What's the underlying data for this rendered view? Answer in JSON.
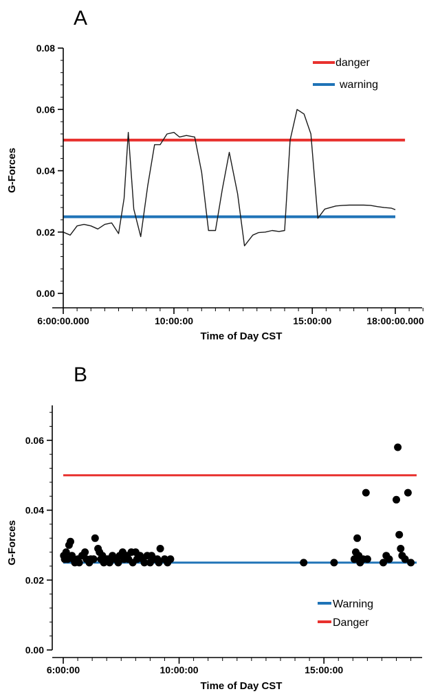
{
  "colors": {
    "danger": "#e8312e",
    "warning": "#1f73b7",
    "line": "#1a1a1a",
    "axis": "#000000"
  },
  "chart_data": [
    {
      "panel_label": "A",
      "type": "line",
      "xlabel": "Time of Day CST",
      "ylabel": "G-Forces",
      "x_unit": "hours",
      "xlim": [
        6,
        19
      ],
      "ylim": [
        0,
        0.08
      ],
      "y_ticks": [
        "0.00",
        "0.02",
        "0.04",
        "0.06",
        "0.08"
      ],
      "y_tick_values": [
        0,
        0.02,
        0.04,
        0.06,
        0.08
      ],
      "x_ticks": [
        "6:00:00.000",
        "10:00:00",
        "15:00:00",
        "18:00:00.000"
      ],
      "x_tick_values": [
        6,
        10,
        15,
        18
      ],
      "legend_position": "top-right",
      "legend": [
        {
          "name": "danger",
          "color": "#e8312e"
        },
        {
          "name": "warning",
          "color": "#1f73b7"
        }
      ],
      "thresholds": [
        {
          "name": "danger",
          "value": 0.05,
          "x_range": [
            6,
            18.35
          ],
          "color": "#e8312e"
        },
        {
          "name": "warning",
          "value": 0.025,
          "x_range": [
            6,
            18
          ],
          "color": "#1f73b7"
        }
      ],
      "series": [
        {
          "x": [
            6,
            6.25,
            6.5,
            6.75,
            7,
            7.25,
            7.5,
            7.75,
            8,
            8.2,
            8.35,
            8.55,
            8.8,
            9.05,
            9.3,
            9.5,
            9.75,
            10,
            10.2,
            10.45,
            10.75,
            11,
            11.25,
            11.5,
            11.75,
            12,
            12.3,
            12.55,
            12.85,
            13.05,
            13.3,
            13.55,
            13.8,
            14,
            14.2,
            14.45,
            14.7,
            14.95,
            15.2,
            15.45,
            15.65,
            15.85,
            16.1,
            16.35,
            16.6,
            16.85,
            17.1,
            17.35,
            17.6,
            17.85,
            18
          ],
          "y": [
            0.02,
            0.019,
            0.022,
            0.0225,
            0.022,
            0.021,
            0.0225,
            0.023,
            0.0195,
            0.031,
            0.0525,
            0.0275,
            0.0185,
            0.035,
            0.0485,
            0.0485,
            0.052,
            0.0525,
            0.051,
            0.0515,
            0.051,
            0.0395,
            0.0205,
            0.0205,
            0.034,
            0.046,
            0.0325,
            0.0155,
            0.019,
            0.0198,
            0.02,
            0.0205,
            0.0202,
            0.0205,
            0.05,
            0.06,
            0.0585,
            0.052,
            0.0245,
            0.0275,
            0.028,
            0.0285,
            0.0287,
            0.0288,
            0.0288,
            0.0288,
            0.0287,
            0.0283,
            0.028,
            0.0278,
            0.0273
          ]
        }
      ]
    },
    {
      "panel_label": "B",
      "type": "scatter",
      "xlabel": "Time of Day CST",
      "ylabel": "G-Forces",
      "x_unit": "hours",
      "xlim": [
        6,
        18.2
      ],
      "ylim": [
        0,
        0.07
      ],
      "y_ticks": [
        "0.00",
        "0.02",
        "0.04",
        "0.06"
      ],
      "y_tick_values": [
        0,
        0.02,
        0.04,
        0.06
      ],
      "x_ticks": [
        "6:00:00",
        "10:00:00",
        "15:00:00"
      ],
      "x_tick_values": [
        6,
        10,
        15
      ],
      "legend_position": "bottom-right",
      "legend": [
        {
          "name": "Warning",
          "color": "#1f73b7"
        },
        {
          "name": "Danger",
          "color": "#e8312e"
        }
      ],
      "thresholds": [
        {
          "name": "Danger",
          "value": 0.05,
          "x_range": [
            6,
            18.2
          ],
          "color": "#e8312e"
        },
        {
          "name": "Warning",
          "value": 0.025,
          "x_range": [
            6,
            18.2
          ],
          "color": "#1f73b7"
        }
      ],
      "points": {
        "x": [
          6.02,
          6.05,
          6.1,
          6.15,
          6.2,
          6.25,
          6.3,
          6.35,
          6.4,
          6.5,
          6.55,
          6.65,
          6.75,
          6.8,
          6.9,
          6.95,
          7.05,
          7.1,
          7.2,
          7.25,
          7.3,
          7.35,
          7.4,
          7.5,
          7.55,
          7.6,
          7.7,
          7.8,
          7.9,
          7.95,
          8.05,
          8.1,
          8.2,
          8.25,
          8.35,
          8.4,
          8.5,
          8.55,
          8.65,
          8.75,
          8.8,
          8.9,
          9.0,
          9.05,
          9.15,
          9.25,
          9.3,
          9.35,
          9.5,
          9.6,
          9.7,
          14.3,
          15.35,
          16.05,
          16.1,
          16.15,
          16.2,
          16.25,
          16.35,
          16.45,
          16.5,
          17.05,
          17.15,
          17.25,
          17.5,
          17.55,
          17.6,
          17.65,
          17.7,
          17.8,
          17.9,
          18.0
        ],
        "y": [
          0.027,
          0.026,
          0.028,
          0.026,
          0.03,
          0.031,
          0.027,
          0.026,
          0.025,
          0.026,
          0.025,
          0.027,
          0.028,
          0.026,
          0.025,
          0.026,
          0.026,
          0.032,
          0.029,
          0.028,
          0.026,
          0.027,
          0.025,
          0.026,
          0.026,
          0.025,
          0.027,
          0.026,
          0.025,
          0.027,
          0.028,
          0.026,
          0.027,
          0.026,
          0.028,
          0.025,
          0.028,
          0.026,
          0.027,
          0.026,
          0.025,
          0.027,
          0.025,
          0.027,
          0.026,
          0.026,
          0.025,
          0.029,
          0.026,
          0.025,
          0.026,
          0.025,
          0.025,
          0.026,
          0.028,
          0.032,
          0.027,
          0.025,
          0.026,
          0.045,
          0.026,
          0.025,
          0.027,
          0.026,
          0.043,
          0.058,
          0.033,
          0.029,
          0.027,
          0.026,
          0.045,
          0.025
        ]
      }
    }
  ]
}
